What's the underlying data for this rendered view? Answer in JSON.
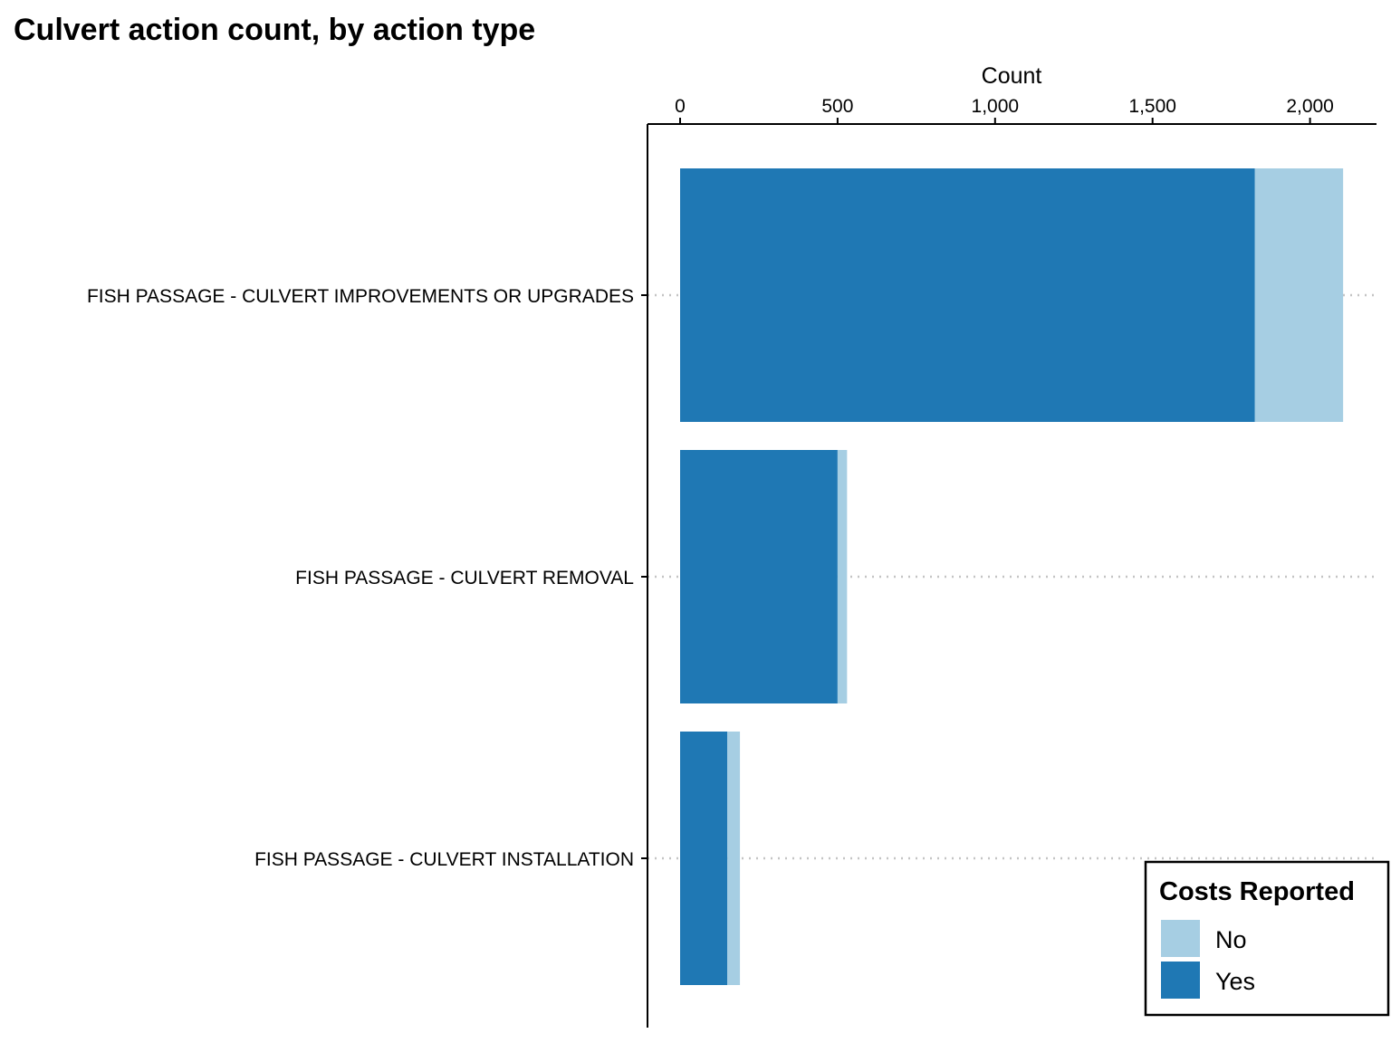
{
  "chart_data": {
    "type": "bar",
    "orientation": "horizontal",
    "stacked": true,
    "title": "Culvert action count, by action type",
    "xlabel": "Count",
    "ylabel": "",
    "x_axis_position": "top",
    "xlim": [
      0,
      2200
    ],
    "x_ticks": [
      0,
      500,
      1000,
      1500,
      2000
    ],
    "x_tick_labels": [
      "0",
      "500",
      "1,000",
      "1,500",
      "2,000"
    ],
    "categories": [
      "FISH PASSAGE - CULVERT IMPROVEMENTS OR UPGRADES",
      "FISH PASSAGE - CULVERT REMOVAL",
      "FISH PASSAGE - CULVERT INSTALLATION"
    ],
    "series": [
      {
        "name": "Yes",
        "color": "#1f78b4",
        "values": [
          1825,
          500,
          150
        ]
      },
      {
        "name": "No",
        "color": "#a6cee3",
        "values": [
          280,
          30,
          40
        ]
      }
    ],
    "grid": "dotted horizontal lines at each category",
    "legend": {
      "title": "Costs Reported",
      "placement": "bottom-right",
      "entries": [
        {
          "label": "No",
          "color": "#a6cee3"
        },
        {
          "label": "Yes",
          "color": "#1f78b4"
        }
      ]
    }
  }
}
